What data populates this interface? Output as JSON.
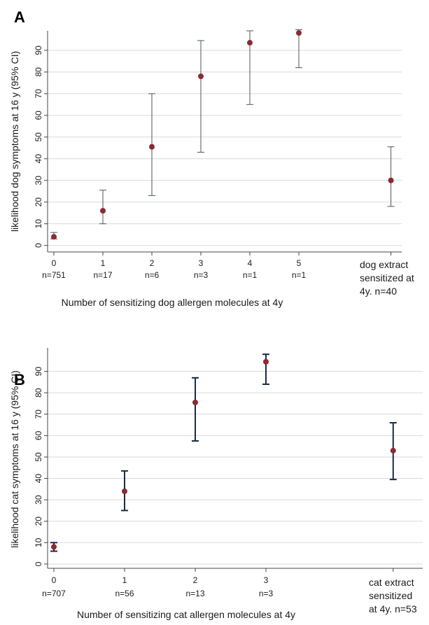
{
  "chart_data": [
    {
      "panel": "A",
      "type": "scatter",
      "ylabel": "likelihood dog symptoms at 16 y (95% CI)",
      "xlabel": "Number of sensitizing dog allergen molecules at 4y",
      "ylim": [
        -3,
        99
      ],
      "yticks": [
        0,
        10,
        20,
        30,
        40,
        50,
        60,
        70,
        80,
        90
      ],
      "grid": "horizontal",
      "categories": [
        {
          "tick": "0",
          "n": "n=751"
        },
        {
          "tick": "1",
          "n": "n=17"
        },
        {
          "tick": "2",
          "n": "n=6"
        },
        {
          "tick": "3",
          "n": "n=3"
        },
        {
          "tick": "4",
          "n": "n=1"
        },
        {
          "tick": "5",
          "n": "n=1"
        },
        {
          "tick": "",
          "n": "",
          "lines": [
            "dog extract",
            "sensitized at",
            "4y. n=40"
          ]
        }
      ],
      "x": [
        0,
        1,
        2,
        3,
        4,
        5,
        6.88
      ],
      "values": [
        4,
        16,
        45.5,
        78,
        93.5,
        98,
        30
      ],
      "ci_low": [
        3,
        10,
        23,
        43,
        65,
        82,
        18
      ],
      "ci_high": [
        6,
        25.5,
        70,
        94.5,
        99,
        99.5,
        45.5
      ],
      "marker_color": "#8b2a30",
      "errorbar_color": "#4a5a55",
      "errorbar_style": "thin"
    },
    {
      "panel": "B",
      "type": "scatter",
      "ylabel": "likelihood cat symptoms at 16 y (95% CI)",
      "xlabel": "Number of sensitizing cat allergen molecules at 4y",
      "ylim": [
        -2,
        101
      ],
      "yticks": [
        0,
        10,
        20,
        30,
        40,
        50,
        60,
        70,
        80,
        90
      ],
      "grid": "horizontal",
      "categories": [
        {
          "tick": "0",
          "n": "n=707"
        },
        {
          "tick": "1",
          "n": "n=56"
        },
        {
          "tick": "2",
          "n": "n=13"
        },
        {
          "tick": "3",
          "n": "n=3"
        },
        {
          "tick": "",
          "n": "",
          "lines": [
            "cat extract",
            "sensitized",
            "at 4y. n=53"
          ]
        }
      ],
      "x": [
        0,
        1,
        2,
        3,
        4.8
      ],
      "values": [
        8,
        34,
        75.5,
        94.5,
        53
      ],
      "ci_low": [
        6,
        25,
        57.5,
        84,
        39.5
      ],
      "ci_high": [
        10,
        43.5,
        87,
        98,
        66
      ],
      "marker_color": "#8b2a30",
      "errorbar_color": "#1a2b48",
      "errorbar_style": "thick"
    }
  ]
}
